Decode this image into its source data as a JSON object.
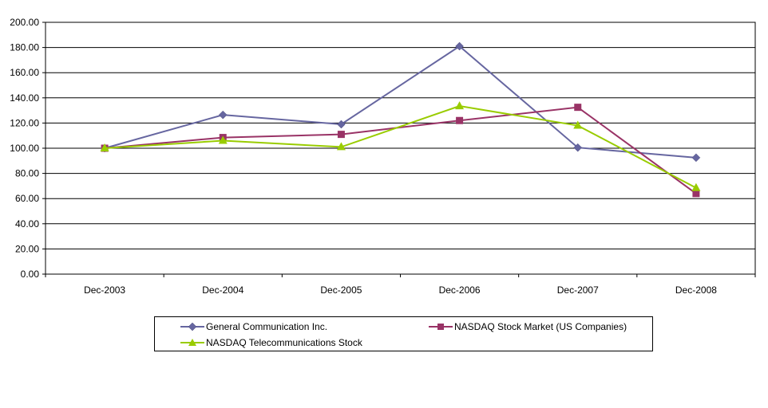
{
  "chart_data": {
    "type": "line",
    "title": "",
    "xlabel": "",
    "ylabel": "",
    "categories": [
      "Dec-2003",
      "Dec-2004",
      "Dec-2005",
      "Dec-2006",
      "Dec-2007",
      "Dec-2008"
    ],
    "ylim": [
      0,
      200
    ],
    "yticks": [
      "0.00",
      "20.00",
      "40.00",
      "60.00",
      "80.00",
      "100.00",
      "120.00",
      "140.00",
      "160.00",
      "180.00",
      "200.00"
    ],
    "grid": true,
    "legend_position": "bottom",
    "series": [
      {
        "name": "General Communication Inc.",
        "values": [
          100,
          126.5,
          119,
          181,
          100.5,
          92.5
        ],
        "color": "#6666A0",
        "marker": "diamond"
      },
      {
        "name": "NASDAQ Stock Market (US Companies)",
        "values": [
          100,
          108.5,
          111,
          122,
          132.5,
          64
        ],
        "color": "#993366",
        "marker": "square"
      },
      {
        "name": "NASDAQ Telecommunications Stock",
        "values": [
          100,
          106,
          101,
          133.5,
          118,
          68.5
        ],
        "color": "#99CC00",
        "marker": "triangle"
      }
    ]
  }
}
